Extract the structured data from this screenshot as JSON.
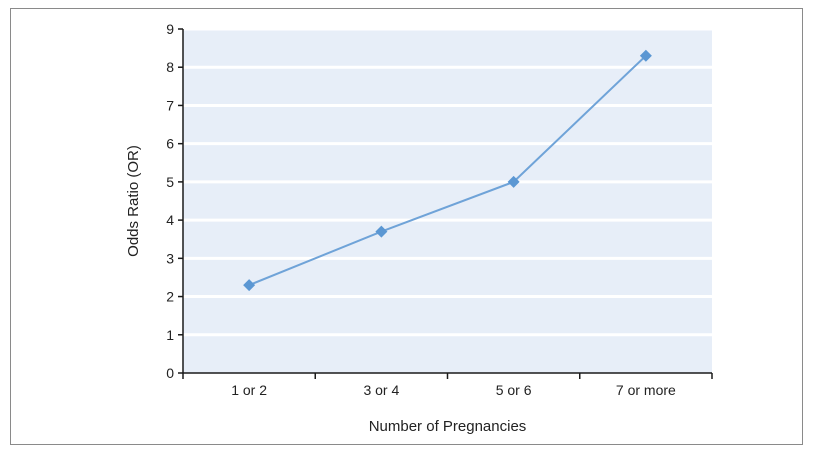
{
  "chart_data": {
    "type": "line",
    "title": "",
    "xlabel": "Number of Pregnancies",
    "ylabel": "Odds Ratio (OR)",
    "categories": [
      "1 or 2",
      "3 or 4",
      "5 or 6",
      "7 or more"
    ],
    "series": [
      {
        "values": [
          2.3,
          3.7,
          5.0,
          8.3
        ]
      }
    ],
    "ylim": [
      0,
      9
    ],
    "yticks": [
      "0",
      "1",
      "2",
      "3",
      "4",
      "5",
      "6",
      "7",
      "8",
      "9"
    ],
    "grid": true,
    "legend": "none",
    "colors": {
      "plot_background": "#e7eef8",
      "gridline": "#ffffff",
      "line": "#6fa3d8",
      "marker": "#5b97d3",
      "axis": "#1a1a1a"
    }
  }
}
